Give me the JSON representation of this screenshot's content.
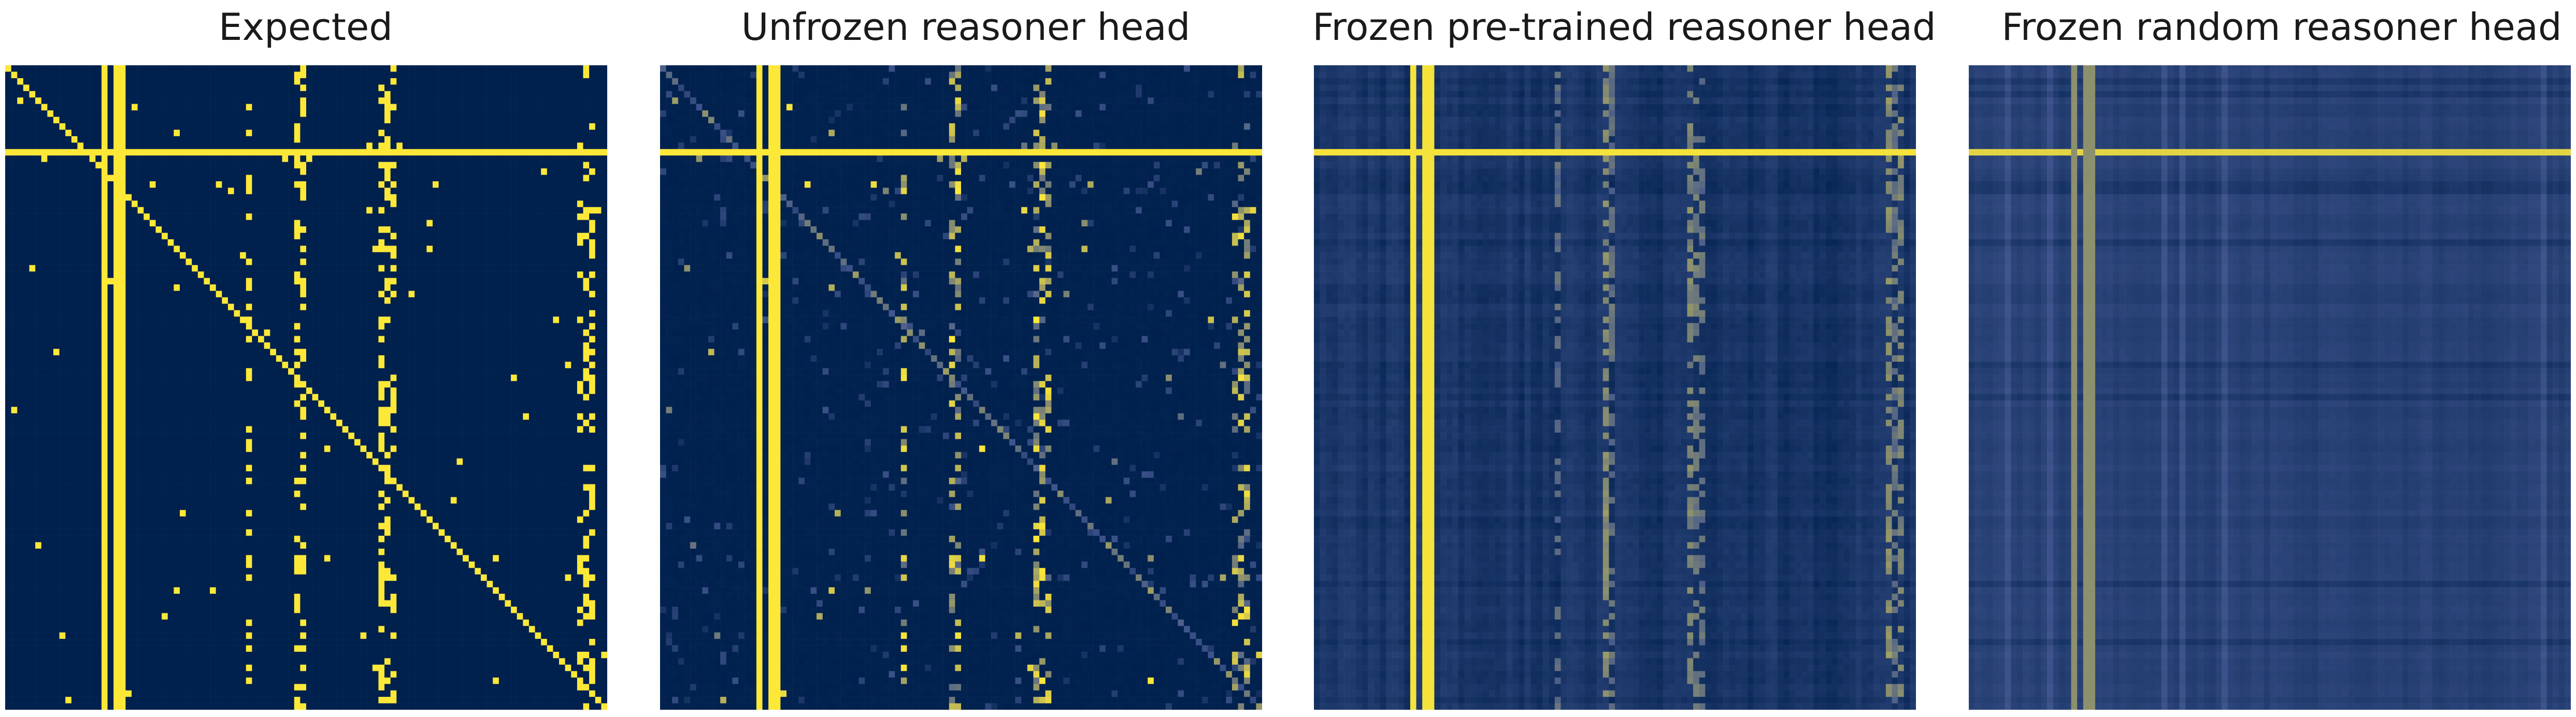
{
  "chart_data": [
    {
      "type": "heatmap",
      "title": "Expected",
      "style": "exact",
      "colormap": "cividis",
      "grid": false
    },
    {
      "type": "heatmap",
      "title": "Unfrozen reasoner head",
      "style": "learned",
      "colormap": "cividis",
      "grid": false
    },
    {
      "type": "heatmap",
      "title": "Frozen pre-trained reasoner head",
      "style": "pretrained",
      "colormap": "cividis",
      "grid": false
    },
    {
      "type": "heatmap",
      "title": "Frozen random reasoner head",
      "style": "random",
      "colormap": "cividis",
      "grid": false
    }
  ],
  "colors": {
    "low": "#00204d",
    "mid": "#41568f",
    "high": "#fde838",
    "background": "#ffffff"
  }
}
